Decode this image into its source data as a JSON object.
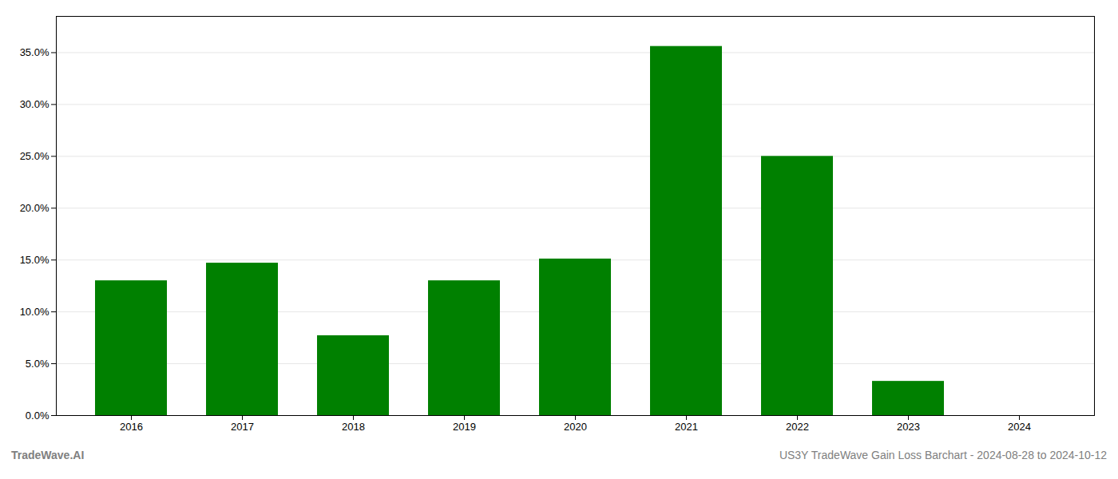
{
  "chart_data": {
    "type": "bar",
    "categories": [
      "2016",
      "2017",
      "2018",
      "2019",
      "2020",
      "2021",
      "2022",
      "2023",
      "2024"
    ],
    "values": [
      0.13,
      0.147,
      0.077,
      0.13,
      0.151,
      0.356,
      0.25,
      0.033,
      0.0
    ],
    "color": "#008000",
    "ylim": [
      0.0,
      0.385
    ],
    "yticks": [
      {
        "value": 0.0,
        "label": "0.0%"
      },
      {
        "value": 0.05,
        "label": "5.0%"
      },
      {
        "value": 0.1,
        "label": "10.0%"
      },
      {
        "value": 0.15,
        "label": "15.0%"
      },
      {
        "value": 0.2,
        "label": "20.0%"
      },
      {
        "value": 0.25,
        "label": "25.0%"
      },
      {
        "value": 0.3,
        "label": "30.0%"
      },
      {
        "value": 0.35,
        "label": "35.0%"
      }
    ],
    "grid": true,
    "annotations": [
      "TradeWave.AI",
      "US3Y TradeWave Gain Loss Barchart - 2024-08-28 to 2024-10-12"
    ]
  }
}
